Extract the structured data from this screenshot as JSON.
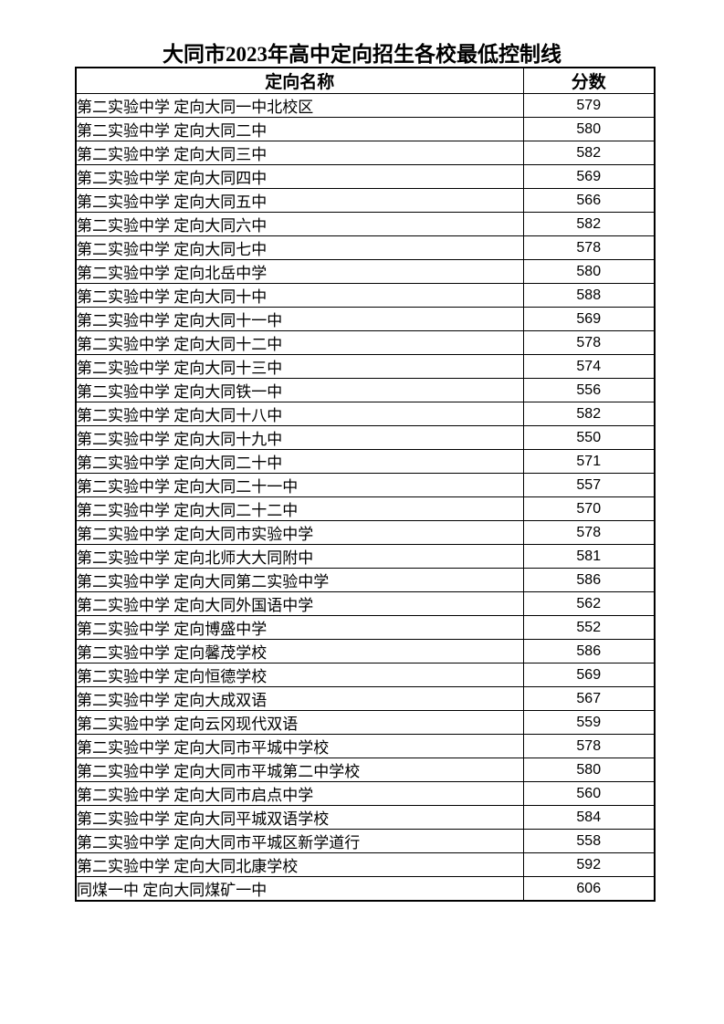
{
  "page": {
    "title": "大同市2023年高中定向招生各校最低控制线"
  },
  "colors": {
    "text": "#000000",
    "border": "#000000",
    "background": "#ffffff"
  },
  "table": {
    "headers": {
      "name": "定向名称",
      "score": "分数"
    },
    "rows": [
      {
        "name": "第二实验中学 定向大同一中北校区",
        "score": "579"
      },
      {
        "name": "第二实验中学 定向大同二中",
        "score": "580"
      },
      {
        "name": "第二实验中学 定向大同三中",
        "score": "582"
      },
      {
        "name": "第二实验中学 定向大同四中",
        "score": "569"
      },
      {
        "name": "第二实验中学 定向大同五中",
        "score": "566"
      },
      {
        "name": "第二实验中学 定向大同六中",
        "score": "582"
      },
      {
        "name": "第二实验中学 定向大同七中",
        "score": "578"
      },
      {
        "name": "第二实验中学 定向北岳中学",
        "score": "580"
      },
      {
        "name": "第二实验中学 定向大同十中",
        "score": "588"
      },
      {
        "name": "第二实验中学 定向大同十一中",
        "score": "569"
      },
      {
        "name": "第二实验中学 定向大同十二中",
        "score": "578"
      },
      {
        "name": "第二实验中学 定向大同十三中",
        "score": "574"
      },
      {
        "name": "第二实验中学 定向大同铁一中",
        "score": "556"
      },
      {
        "name": "第二实验中学 定向大同十八中",
        "score": "582"
      },
      {
        "name": "第二实验中学 定向大同十九中",
        "score": "550"
      },
      {
        "name": "第二实验中学 定向大同二十中",
        "score": "571"
      },
      {
        "name": "第二实验中学 定向大同二十一中",
        "score": "557"
      },
      {
        "name": "第二实验中学 定向大同二十二中",
        "score": "570"
      },
      {
        "name": "第二实验中学 定向大同市实验中学",
        "score": "578"
      },
      {
        "name": "第二实验中学 定向北师大大同附中",
        "score": "581"
      },
      {
        "name": "第二实验中学 定向大同第二实验中学",
        "score": "586"
      },
      {
        "name": "第二实验中学 定向大同外国语中学",
        "score": "562"
      },
      {
        "name": "第二实验中学 定向博盛中学",
        "score": "552"
      },
      {
        "name": "第二实验中学 定向馨茂学校",
        "score": "586"
      },
      {
        "name": "第二实验中学 定向恒德学校",
        "score": "569"
      },
      {
        "name": "第二实验中学 定向大成双语",
        "score": "567"
      },
      {
        "name": "第二实验中学 定向云冈现代双语",
        "score": "559"
      },
      {
        "name": "第二实验中学 定向大同市平城中学校",
        "score": "578"
      },
      {
        "name": "第二实验中学 定向大同市平城第二中学校",
        "score": "580"
      },
      {
        "name": "第二实验中学 定向大同市启点中学",
        "score": "560"
      },
      {
        "name": "第二实验中学 定向大同平城双语学校",
        "score": "584"
      },
      {
        "name": "第二实验中学 定向大同市平城区新学道行",
        "score": "558"
      },
      {
        "name": "第二实验中学 定向大同北康学校",
        "score": "592"
      },
      {
        "name": "同煤一中 定向大同煤矿一中",
        "score": "606"
      }
    ]
  }
}
